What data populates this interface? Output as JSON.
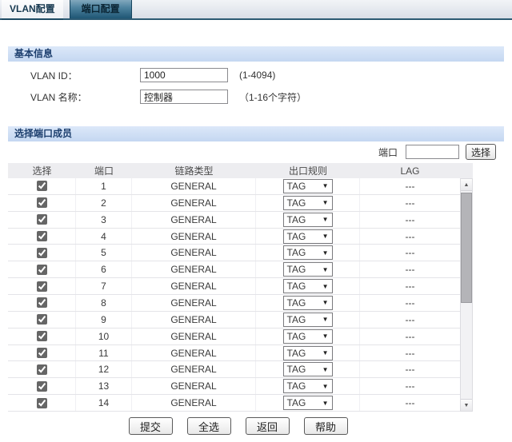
{
  "tabs": [
    {
      "label": "VLAN配置",
      "active": true
    },
    {
      "label": "端口配置",
      "active": false
    }
  ],
  "basic_info": {
    "title": "基本信息",
    "vlan_id_label": "VLAN ID：",
    "vlan_id_value": "1000",
    "vlan_id_hint": "(1-4094)",
    "vlan_name_label": "VLAN 名称：",
    "vlan_name_value": "控制器",
    "vlan_name_hint": "（1-16个字符）"
  },
  "port_members": {
    "title": "选择端口成员",
    "port_filter_label": "端口",
    "port_filter_value": "",
    "select_button_label": "选择",
    "table": {
      "headers": [
        "选择",
        "端口",
        "链路类型",
        "出口规则",
        "LAG"
      ],
      "rows": [
        {
          "checked": true,
          "port": "1",
          "link_type": "GENERAL",
          "egress_rule": "TAG",
          "lag": "---"
        },
        {
          "checked": true,
          "port": "2",
          "link_type": "GENERAL",
          "egress_rule": "TAG",
          "lag": "---"
        },
        {
          "checked": true,
          "port": "3",
          "link_type": "GENERAL",
          "egress_rule": "TAG",
          "lag": "---"
        },
        {
          "checked": true,
          "port": "4",
          "link_type": "GENERAL",
          "egress_rule": "TAG",
          "lag": "---"
        },
        {
          "checked": true,
          "port": "5",
          "link_type": "GENERAL",
          "egress_rule": "TAG",
          "lag": "---"
        },
        {
          "checked": true,
          "port": "6",
          "link_type": "GENERAL",
          "egress_rule": "TAG",
          "lag": "---"
        },
        {
          "checked": true,
          "port": "7",
          "link_type": "GENERAL",
          "egress_rule": "TAG",
          "lag": "---"
        },
        {
          "checked": true,
          "port": "8",
          "link_type": "GENERAL",
          "egress_rule": "TAG",
          "lag": "---"
        },
        {
          "checked": true,
          "port": "9",
          "link_type": "GENERAL",
          "egress_rule": "TAG",
          "lag": "---"
        },
        {
          "checked": true,
          "port": "10",
          "link_type": "GENERAL",
          "egress_rule": "TAG",
          "lag": "---"
        },
        {
          "checked": true,
          "port": "11",
          "link_type": "GENERAL",
          "egress_rule": "TAG",
          "lag": "---"
        },
        {
          "checked": true,
          "port": "12",
          "link_type": "GENERAL",
          "egress_rule": "TAG",
          "lag": "---"
        },
        {
          "checked": true,
          "port": "13",
          "link_type": "GENERAL",
          "egress_rule": "TAG",
          "lag": "---"
        },
        {
          "checked": true,
          "port": "14",
          "link_type": "GENERAL",
          "egress_rule": "TAG",
          "lag": "---"
        }
      ]
    }
  },
  "footer_buttons": [
    {
      "label": "提交"
    },
    {
      "label": "全选"
    },
    {
      "label": "返回"
    },
    {
      "label": "帮助"
    }
  ],
  "colors": {
    "section_header_bg": "#c9daf3",
    "tab_inactive_gradient_top": "#8db0c3",
    "tab_inactive_gradient_bottom": "#1f5674",
    "tab_strip_border": "#2c5a73",
    "table_header_bg": "#ededf0",
    "scrollbar_thumb": "#b4b4b8"
  }
}
